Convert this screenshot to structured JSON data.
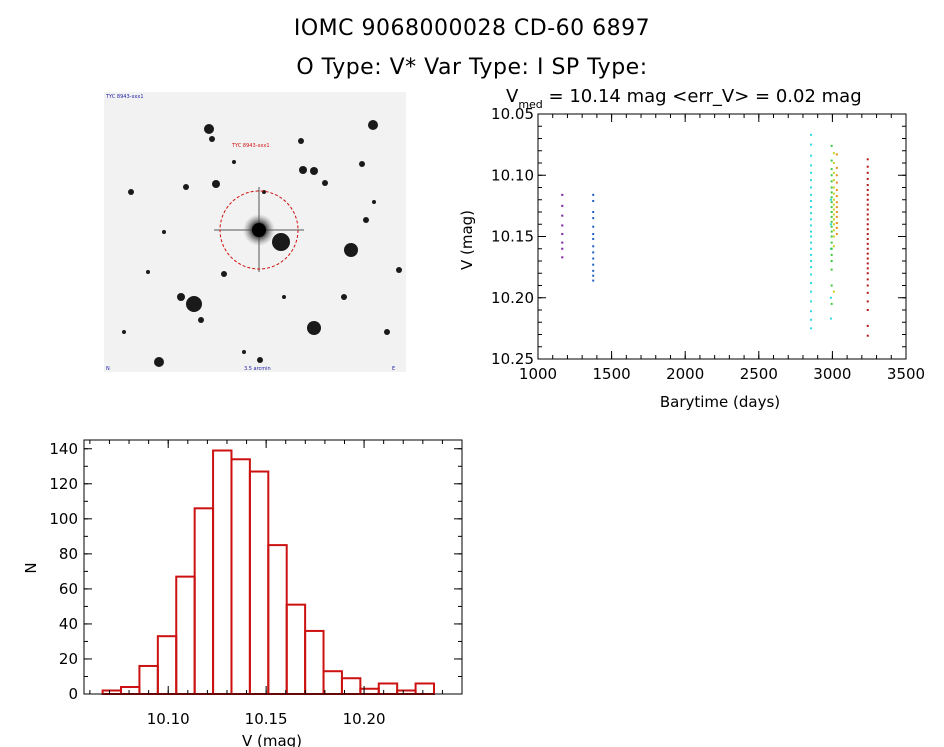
{
  "header": {
    "title_line1": "IOMC 9068000028    CD-60   6897",
    "title_line2": "O Type: V*  Var Type: I  SP Type:"
  },
  "sky_image": {
    "label_top_left": "TYC 8943-xxx1",
    "label_target": "TYC 8943-xxx1",
    "label_bottom_left": "N",
    "label_bottom_center": "3.5 arcmin",
    "label_bottom_right": "E"
  },
  "chart_data": [
    {
      "type": "scatter",
      "title_main": "V",
      "title_sub": "med",
      "title_rest": " = 10.14 mag <err_V> = 0.02 mag",
      "xlabel": "Barytime (days)",
      "ylabel": "V (mag)",
      "xlim": [
        1000,
        3500
      ],
      "ylim": [
        10.25,
        10.05
      ],
      "y_inverted": true,
      "xticks": [
        1000,
        1500,
        2000,
        2500,
        3000,
        3500
      ],
      "yticks": [
        10.05,
        10.1,
        10.15,
        10.2,
        10.25
      ],
      "ytick_labels": [
        "10.05",
        "10.10",
        "10.15",
        "10.20",
        "10.25"
      ],
      "series": [
        {
          "color": "#7a1fa2",
          "x": [
            1165,
            1165,
            1165,
            1165,
            1165,
            1165,
            1165,
            1165
          ],
          "y": [
            10.116,
            10.125,
            10.133,
            10.141,
            10.148,
            10.155,
            10.16,
            10.167
          ]
        },
        {
          "color": "#1f5fbf",
          "x": [
            1375,
            1375,
            1375,
            1375,
            1375,
            1375,
            1375,
            1375,
            1375,
            1375,
            1375,
            1375,
            1375,
            1375
          ],
          "y": [
            10.116,
            10.121,
            10.13,
            10.135,
            10.142,
            10.148,
            10.152,
            10.158,
            10.163,
            10.168,
            10.173,
            10.178,
            10.182,
            10.186
          ]
        },
        {
          "color": "#2fd8e0",
          "x": [
            2855,
            2855,
            2855,
            2855,
            2855,
            2855,
            2855,
            2855,
            2855,
            2855,
            2855,
            2855,
            2855,
            2855,
            2855,
            2855,
            2855,
            2855,
            2855,
            2855,
            2855,
            2855,
            2855,
            2855,
            2855,
            2855,
            2855
          ],
          "y": [
            10.067,
            10.075,
            10.084,
            10.092,
            10.098,
            10.104,
            10.11,
            10.116,
            10.121,
            10.126,
            10.131,
            10.136,
            10.141,
            10.146,
            10.15,
            10.155,
            10.16,
            10.165,
            10.17,
            10.175,
            10.181,
            10.188,
            10.195,
            10.203,
            10.211,
            10.218,
            10.225
          ]
        },
        {
          "color": "#2fd8e0",
          "x": [
            2990,
            2990,
            2990,
            2990,
            2990
          ],
          "y": [
            10.12,
            10.14,
            10.16,
            10.2,
            10.217
          ]
        },
        {
          "color": "#3cc83c",
          "x": [
            2995,
            2995,
            2995,
            2995,
            2995,
            2995,
            2995,
            2995,
            2995,
            2995,
            2995,
            2995,
            2995,
            2995,
            2995,
            2995,
            2995,
            2995,
            2995,
            2995,
            2995,
            2995,
            2995
          ],
          "y": [
            10.076,
            10.088,
            10.095,
            10.1,
            10.105,
            10.11,
            10.114,
            10.118,
            10.122,
            10.126,
            10.13,
            10.134,
            10.138,
            10.142,
            10.146,
            10.15,
            10.155,
            10.16,
            10.165,
            10.17,
            10.177,
            10.19,
            10.205
          ]
        },
        {
          "color": "#c8d020",
          "x": [
            3010,
            3010,
            3010,
            3010,
            3010,
            3010,
            3010,
            3010,
            3010,
            3010,
            3010,
            3010,
            3010,
            3010,
            3010,
            3010
          ],
          "y": [
            10.082,
            10.09,
            10.098,
            10.104,
            10.11,
            10.115,
            10.12,
            10.124,
            10.128,
            10.132,
            10.136,
            10.14,
            10.145,
            10.15,
            10.158,
            10.195
          ]
        },
        {
          "color": "#e8901c",
          "x": [
            3030,
            3030,
            3030,
            3030,
            3030,
            3030,
            3030,
            3030,
            3030,
            3030,
            3030,
            3030,
            3030
          ],
          "y": [
            10.083,
            10.094,
            10.1,
            10.106,
            10.112,
            10.117,
            10.122,
            10.126,
            10.13,
            10.134,
            10.139,
            10.143,
            10.148
          ]
        },
        {
          "color": "#b01818",
          "x": [
            3240,
            3240,
            3240,
            3240,
            3240,
            3240,
            3240,
            3240,
            3240,
            3240,
            3240,
            3240,
            3240,
            3240,
            3240,
            3240,
            3240,
            3240,
            3240,
            3240,
            3240,
            3240,
            3240,
            3240,
            3240,
            3240,
            3240,
            3240,
            3240,
            3240
          ],
          "y": [
            10.087,
            10.093,
            10.098,
            10.103,
            10.108,
            10.112,
            10.116,
            10.12,
            10.124,
            10.128,
            10.132,
            10.136,
            10.14,
            10.144,
            10.148,
            10.152,
            10.156,
            10.16,
            10.164,
            10.168,
            10.172,
            10.176,
            10.18,
            10.185,
            10.19,
            10.196,
            10.203,
            10.21,
            10.223,
            10.231
          ]
        }
      ]
    },
    {
      "type": "bar",
      "xlabel": "V (mag)",
      "ylabel": "N",
      "xlim": [
        10.057,
        10.25
      ],
      "ylim": [
        0,
        145
      ],
      "xticks": [
        10.1,
        10.15,
        10.2
      ],
      "xtick_labels": [
        "10.10",
        "10.15",
        "10.20"
      ],
      "yticks": [
        0,
        20,
        40,
        60,
        80,
        100,
        120,
        140
      ],
      "bar_color": "#cc1111",
      "bin_edges": [
        10.0665,
        10.0759,
        10.0853,
        10.0947,
        10.1041,
        10.1135,
        10.1229,
        10.1323,
        10.1417,
        10.1511,
        10.1605,
        10.1699,
        10.1793,
        10.1887,
        10.1981,
        10.2075,
        10.2169,
        10.2263,
        10.2357
      ],
      "values": [
        2,
        4,
        16,
        33,
        67,
        106,
        139,
        134,
        127,
        85,
        51,
        36,
        13,
        9,
        3,
        6,
        2,
        6
      ]
    }
  ]
}
